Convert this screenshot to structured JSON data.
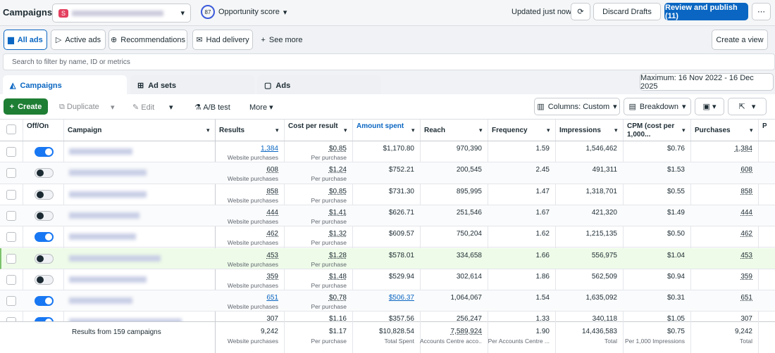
{
  "header": {
    "title": "Campaigns",
    "account_badge": "S",
    "score": "87",
    "score_label": "Opportunity score",
    "updated": "Updated just now",
    "discard": "Discard Drafts",
    "publish": "Review and publish (11)"
  },
  "filters": {
    "items": [
      "All ads",
      "Active ads",
      "Recommendations",
      "Had delivery",
      "See more"
    ],
    "create_view": "Create a view",
    "search_placeholder": "Search to filter by name, ID or metrics"
  },
  "level_tabs": {
    "items": [
      "Campaigns",
      "Ad sets",
      "Ads"
    ],
    "date_range": "Maximum: 16 Nov 2022 - 16 Dec 2025"
  },
  "toolbar": {
    "create": "Create",
    "duplicate": "Duplicate",
    "edit": "Edit",
    "ab_test": "A/B test",
    "more": "More",
    "columns": "Columns: Custom",
    "breakdown": "Breakdown"
  },
  "table": {
    "columns": [
      "Off/On",
      "Campaign",
      "Results",
      "Cost per result",
      "Amount spent",
      "Reach",
      "Frequency",
      "Impressions",
      "CPM (cost per 1,000...",
      "Purchases",
      "Pur..."
    ],
    "results_sub": "Website purchases",
    "cost_sub": "Per purchase",
    "rows": [
      {
        "on": true,
        "results": "1,384",
        "cost": "$0.85",
        "amount": "$1,170.80",
        "reach": "970,390",
        "frequency": "1.59",
        "impressions": "1,546,462",
        "cpm": "$0.76",
        "purchases": "1,384"
      },
      {
        "on": false,
        "results": "608",
        "cost": "$1.24",
        "amount": "$752.21",
        "reach": "200,545",
        "frequency": "2.45",
        "impressions": "491,311",
        "cpm": "$1.53",
        "purchases": "608"
      },
      {
        "on": false,
        "results": "858",
        "cost": "$0.85",
        "amount": "$731.30",
        "reach": "895,995",
        "frequency": "1.47",
        "impressions": "1,318,701",
        "cpm": "$0.55",
        "purchases": "858"
      },
      {
        "on": false,
        "results": "444",
        "cost": "$1.41",
        "amount": "$626.71",
        "reach": "251,546",
        "frequency": "1.67",
        "impressions": "421,320",
        "cpm": "$1.49",
        "purchases": "444"
      },
      {
        "on": true,
        "results": "462",
        "cost": "$1.32",
        "amount": "$609.57",
        "reach": "750,204",
        "frequency": "1.62",
        "impressions": "1,215,135",
        "cpm": "$0.50",
        "purchases": "462"
      },
      {
        "on": false,
        "results": "453",
        "cost": "$1.28",
        "amount": "$578.01",
        "reach": "334,658",
        "frequency": "1.66",
        "impressions": "556,975",
        "cpm": "$1.04",
        "purchases": "453"
      },
      {
        "on": false,
        "results": "359",
        "cost": "$1.48",
        "amount": "$529.94",
        "reach": "302,614",
        "frequency": "1.86",
        "impressions": "562,509",
        "cpm": "$0.94",
        "purchases": "359"
      },
      {
        "on": true,
        "results": "651",
        "cost": "$0.78",
        "amount": "$506.37",
        "reach": "1,064,067",
        "frequency": "1.54",
        "impressions": "1,635,092",
        "cpm": "$0.31",
        "purchases": "651"
      },
      {
        "on": true,
        "results": "307",
        "cost": "$1.16",
        "amount": "$357.56",
        "reach": "256,247",
        "frequency": "1.33",
        "impressions": "340,118",
        "cpm": "$1.05",
        "purchases": "307"
      }
    ],
    "totals": {
      "label": "Results from 159 campaigns",
      "results": "9,242",
      "results_sub": "Website purchases",
      "cost": "$1.17",
      "cost_sub": "Per purchase",
      "amount": "$10,828.54",
      "amount_sub": "Total Spent",
      "reach": "7,589,924",
      "reach_sub": "Accounts Centre acco...",
      "frequency": "1.90",
      "frequency_sub": "Per Accounts Centre ...",
      "impressions": "14,436,583",
      "impressions_sub": "Total",
      "cpm": "$0.75",
      "cpm_sub": "Per 1,000 Impressions",
      "purchases": "9,242",
      "purchases_sub": "Total"
    }
  }
}
